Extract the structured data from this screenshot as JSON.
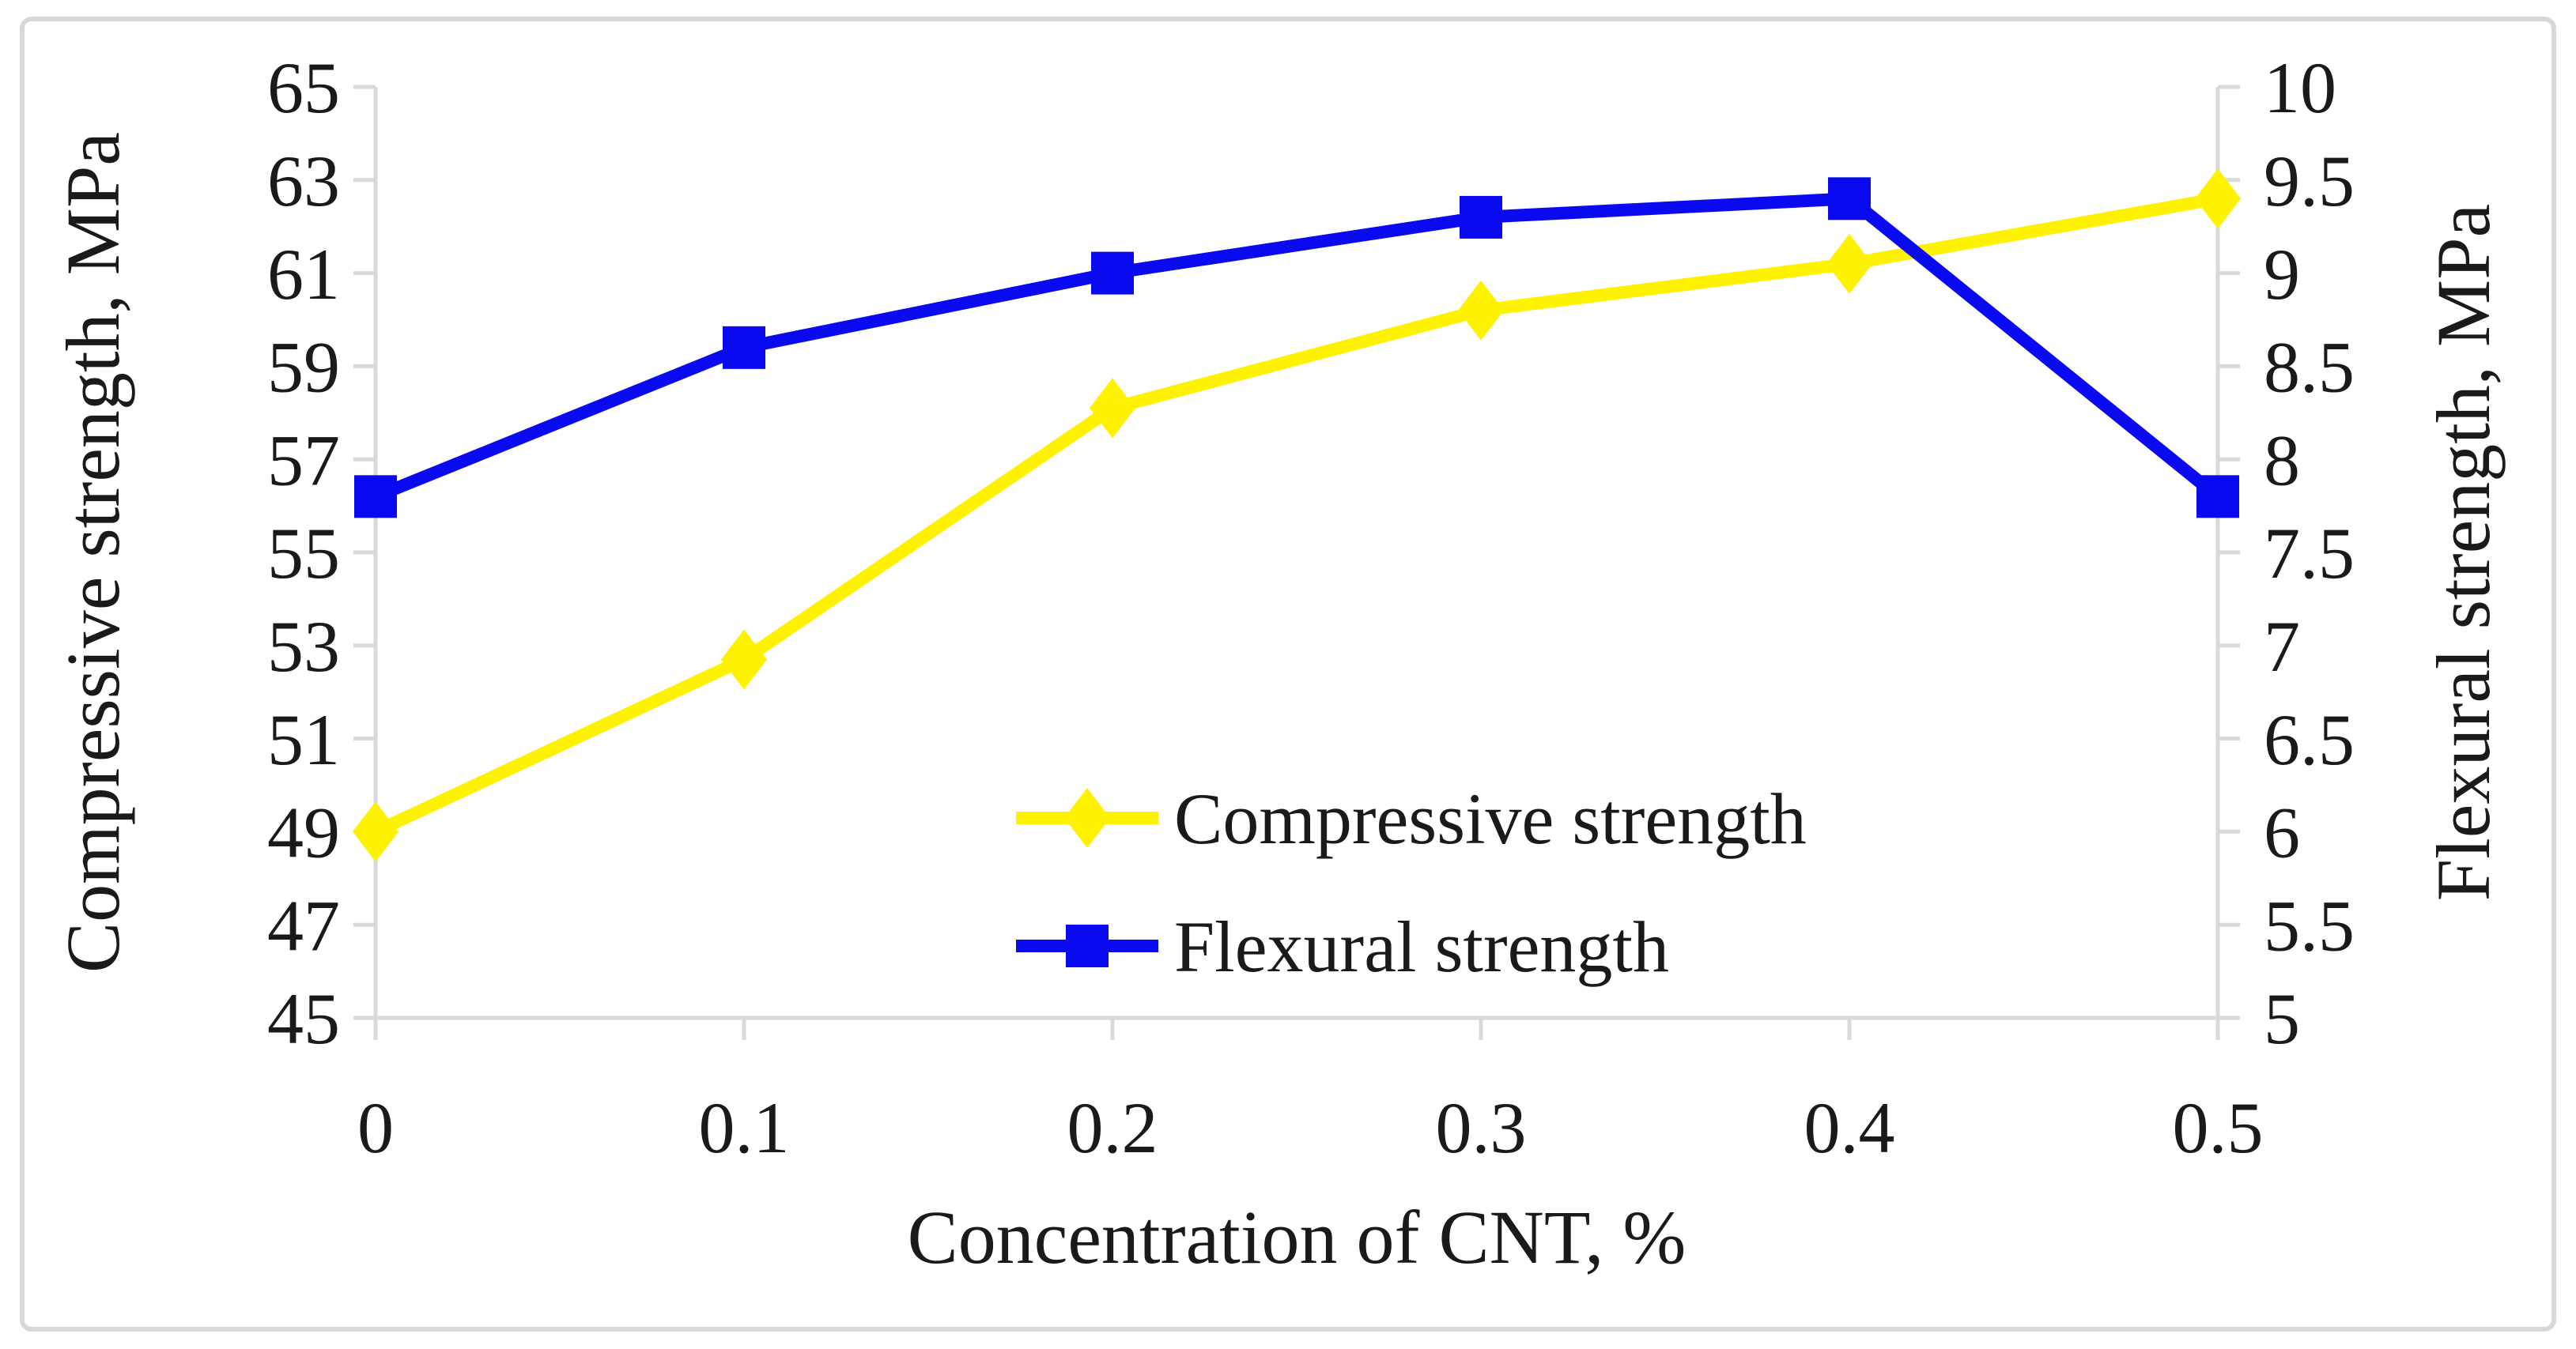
{
  "figure": {
    "background": "#ffffff",
    "border_color": "#d8d8d8",
    "axis_color": "#d9d9d9",
    "text_color": "#1a1a1a"
  },
  "chart_data": {
    "type": "line",
    "title": "",
    "xlabel": "Concentration of CNT, %",
    "x": [
      0,
      0.1,
      0.2,
      0.3,
      0.4,
      0.5
    ],
    "x_tick_labels": [
      "0",
      "0.1",
      "0.2",
      "0.3",
      "0.4",
      "0.5"
    ],
    "left_axis": {
      "label": "Compressive strength, MPa",
      "min": 45,
      "max": 65,
      "tick_step": 2,
      "tick_labels": [
        "65",
        "63",
        "61",
        "59",
        "57",
        "55",
        "53",
        "51",
        "49",
        "47",
        "45"
      ]
    },
    "right_axis": {
      "label": "Flexural strength, MPa",
      "min": 5,
      "max": 10,
      "tick_step": 0.5,
      "tick_labels": [
        "10",
        "9.5",
        "9",
        "8.5",
        "8",
        "7.5",
        "7",
        "6.5",
        "6",
        "5.5",
        "5"
      ]
    },
    "series": [
      {
        "name": "Compressive strength",
        "axis": "left",
        "marker": "diamond",
        "color": "#fff200",
        "values": [
          49,
          52.7,
          58.1,
          60.2,
          61.2,
          62.6
        ]
      },
      {
        "name": "Flexural strength",
        "axis": "right",
        "marker": "square",
        "color": "#0a0af0",
        "values": [
          7.8,
          8.6,
          9.0,
          9.3,
          9.4,
          7.8
        ]
      }
    ],
    "grid": false,
    "legend_position": "inside-center"
  },
  "legend": {
    "items": [
      {
        "label": "Compressive strength",
        "marker": "diamond",
        "color": "#fff200"
      },
      {
        "label": "Flexural strength",
        "marker": "square",
        "color": "#0a0af0"
      }
    ]
  }
}
